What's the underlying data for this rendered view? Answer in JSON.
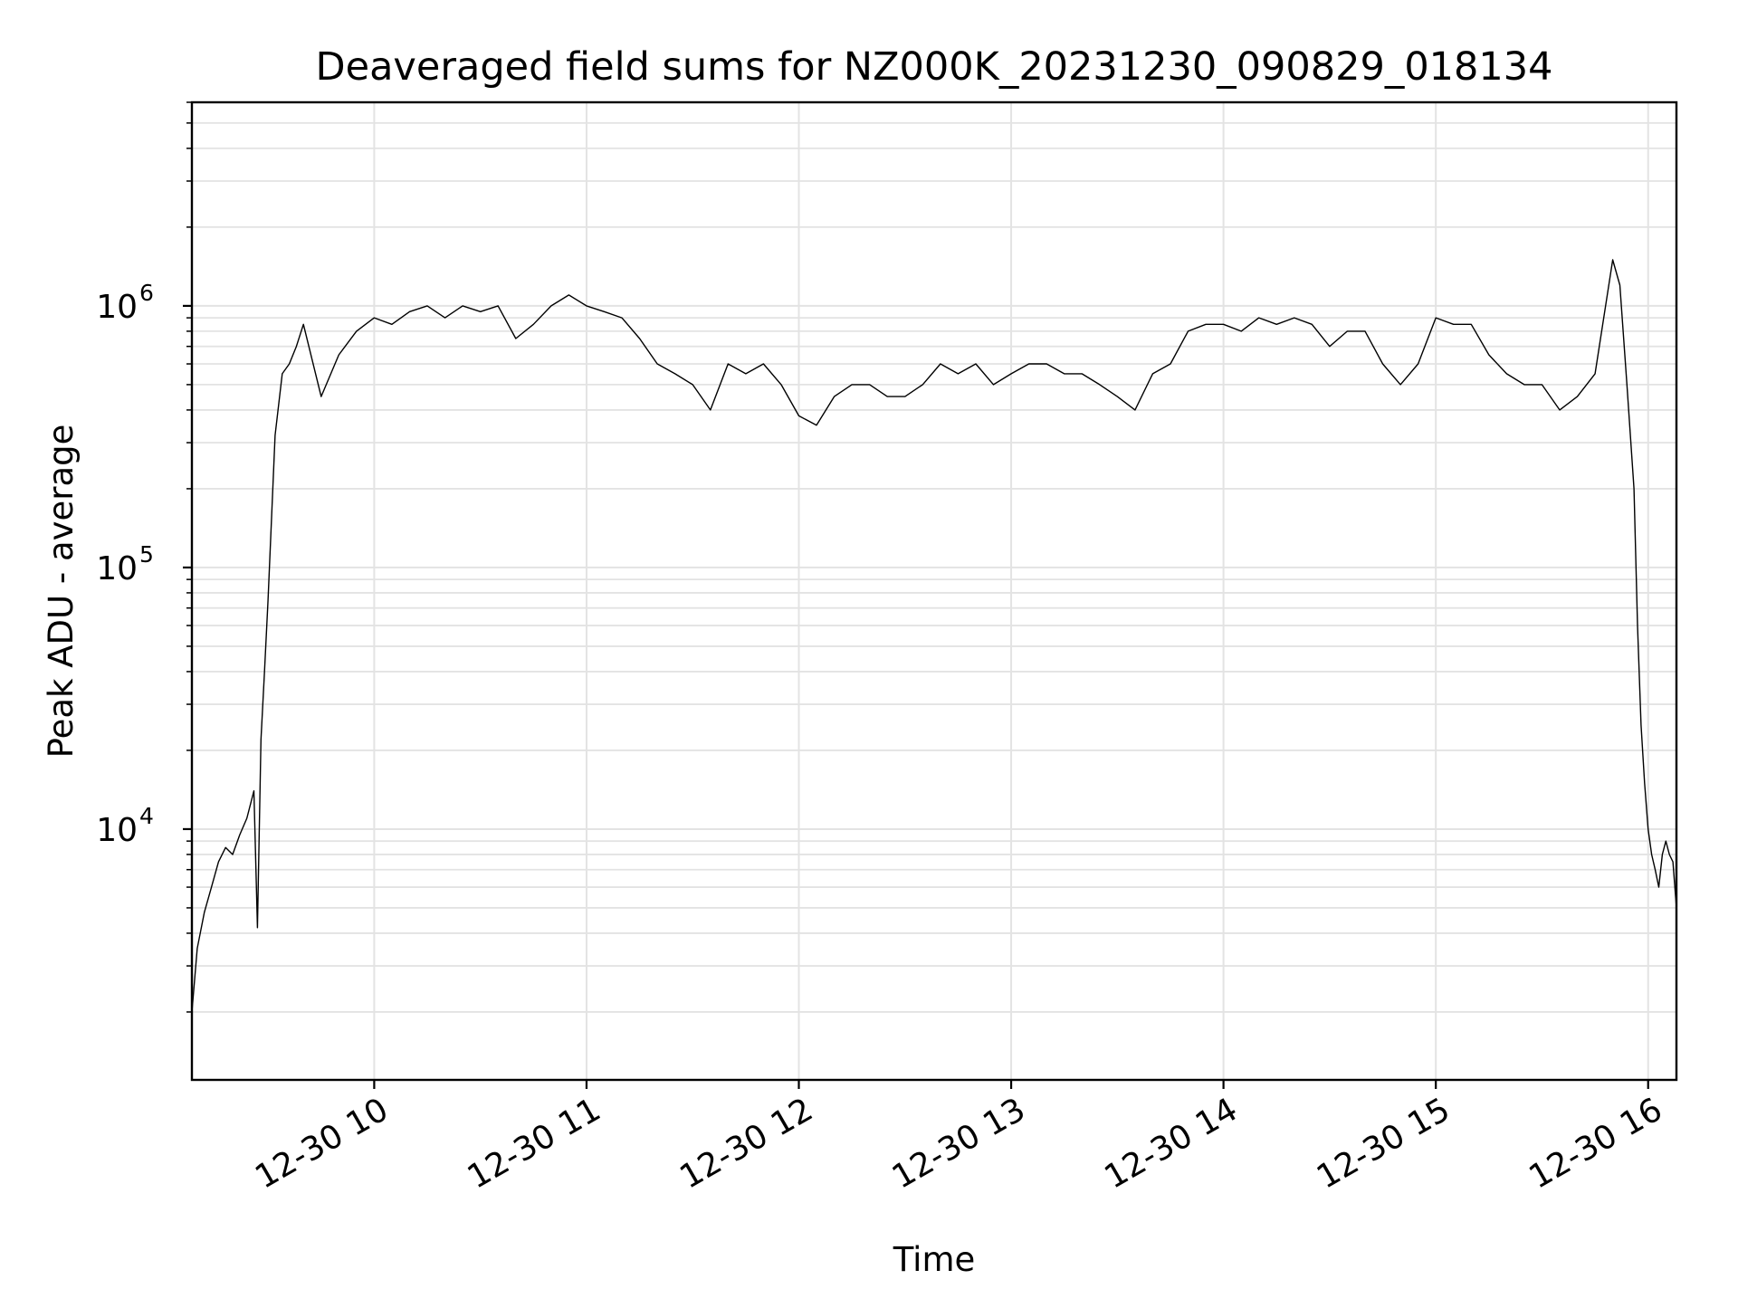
{
  "chart_data": {
    "type": "line",
    "title": "Deaveraged field sums for NZ000K_20231230_090829_018134",
    "xlabel": "Time",
    "ylabel": "Peak ADU - average",
    "yscale": "log",
    "grid": true,
    "xlim": [
      "2023-12-30 09:08:29",
      "2023-12-30 16:08:00"
    ],
    "ylim": [
      1100,
      6000000
    ],
    "x_ticks": [
      {
        "value": "2023-12-30 10:00",
        "label": "12-30 10"
      },
      {
        "value": "2023-12-30 11:00",
        "label": "12-30 11"
      },
      {
        "value": "2023-12-30 12:00",
        "label": "12-30 12"
      },
      {
        "value": "2023-12-30 13:00",
        "label": "12-30 13"
      },
      {
        "value": "2023-12-30 14:00",
        "label": "12-30 14"
      },
      {
        "value": "2023-12-30 15:00",
        "label": "12-30 15"
      },
      {
        "value": "2023-12-30 16:00",
        "label": "12-30 16"
      }
    ],
    "y_ticks": [
      {
        "value": 10000,
        "base": "10",
        "exp": "4"
      },
      {
        "value": 100000,
        "base": "10",
        "exp": "5"
      },
      {
        "value": 1000000,
        "base": "10",
        "exp": "6"
      }
    ],
    "series": [
      {
        "color": "#000000",
        "x": [
          "2023-12-30 09:08:29",
          "2023-12-30 09:10",
          "2023-12-30 09:12",
          "2023-12-30 09:14",
          "2023-12-30 09:16",
          "2023-12-30 09:18",
          "2023-12-30 09:20",
          "2023-12-30 09:22",
          "2023-12-30 09:24",
          "2023-12-30 09:26",
          "2023-12-30 09:27",
          "2023-12-30 09:28",
          "2023-12-30 09:29",
          "2023-12-30 09:30",
          "2023-12-30 09:32",
          "2023-12-30 09:34",
          "2023-12-30 09:36",
          "2023-12-30 09:38",
          "2023-12-30 09:40",
          "2023-12-30 09:45",
          "2023-12-30 09:50",
          "2023-12-30 09:55",
          "2023-12-30 10:00",
          "2023-12-30 10:05",
          "2023-12-30 10:10",
          "2023-12-30 10:15",
          "2023-12-30 10:20",
          "2023-12-30 10:25",
          "2023-12-30 10:30",
          "2023-12-30 10:35",
          "2023-12-30 10:40",
          "2023-12-30 10:45",
          "2023-12-30 10:50",
          "2023-12-30 10:55",
          "2023-12-30 11:00",
          "2023-12-30 11:05",
          "2023-12-30 11:10",
          "2023-12-30 11:15",
          "2023-12-30 11:20",
          "2023-12-30 11:25",
          "2023-12-30 11:30",
          "2023-12-30 11:35",
          "2023-12-30 11:40",
          "2023-12-30 11:45",
          "2023-12-30 11:50",
          "2023-12-30 11:55",
          "2023-12-30 12:00",
          "2023-12-30 12:05",
          "2023-12-30 12:10",
          "2023-12-30 12:15",
          "2023-12-30 12:20",
          "2023-12-30 12:25",
          "2023-12-30 12:30",
          "2023-12-30 12:35",
          "2023-12-30 12:40",
          "2023-12-30 12:45",
          "2023-12-30 12:50",
          "2023-12-30 12:55",
          "2023-12-30 13:00",
          "2023-12-30 13:05",
          "2023-12-30 13:10",
          "2023-12-30 13:15",
          "2023-12-30 13:20",
          "2023-12-30 13:25",
          "2023-12-30 13:30",
          "2023-12-30 13:35",
          "2023-12-30 13:40",
          "2023-12-30 13:45",
          "2023-12-30 13:50",
          "2023-12-30 13:55",
          "2023-12-30 14:00",
          "2023-12-30 14:05",
          "2023-12-30 14:10",
          "2023-12-30 14:15",
          "2023-12-30 14:20",
          "2023-12-30 14:25",
          "2023-12-30 14:30",
          "2023-12-30 14:35",
          "2023-12-30 14:40",
          "2023-12-30 14:45",
          "2023-12-30 14:50",
          "2023-12-30 14:55",
          "2023-12-30 15:00",
          "2023-12-30 15:05",
          "2023-12-30 15:10",
          "2023-12-30 15:15",
          "2023-12-30 15:20",
          "2023-12-30 15:25",
          "2023-12-30 15:30",
          "2023-12-30 15:35",
          "2023-12-30 15:40",
          "2023-12-30 15:45",
          "2023-12-30 15:50",
          "2023-12-30 15:52",
          "2023-12-30 15:54",
          "2023-12-30 15:56",
          "2023-12-30 15:57",
          "2023-12-30 15:58",
          "2023-12-30 15:59",
          "2023-12-30 16:00",
          "2023-12-30 16:01",
          "2023-12-30 16:02",
          "2023-12-30 16:03",
          "2023-12-30 16:04",
          "2023-12-30 16:05",
          "2023-12-30 16:06",
          "2023-12-30 16:07",
          "2023-12-30 16:08"
        ],
        "y": [
          2000,
          3500,
          4800,
          6000,
          7500,
          8500,
          8000,
          9500,
          11000,
          14000,
          4200,
          22000,
          40000,
          75000,
          320000,
          550000,
          600000,
          700000,
          850000,
          450000,
          650000,
          800000,
          900000,
          850000,
          950000,
          1000000,
          900000,
          1000000,
          950000,
          1000000,
          750000,
          850000,
          1000000,
          1100000,
          1000000,
          950000,
          900000,
          750000,
          600000,
          550000,
          500000,
          400000,
          600000,
          550000,
          600000,
          500000,
          380000,
          350000,
          450000,
          500000,
          500000,
          450000,
          450000,
          500000,
          600000,
          550000,
          600000,
          500000,
          550000,
          600000,
          600000,
          550000,
          550000,
          500000,
          450000,
          400000,
          550000,
          600000,
          800000,
          850000,
          850000,
          800000,
          900000,
          850000,
          900000,
          850000,
          700000,
          800000,
          800000,
          600000,
          500000,
          600000,
          900000,
          850000,
          850000,
          650000,
          550000,
          500000,
          500000,
          400000,
          450000,
          550000,
          1500000,
          1200000,
          500000,
          200000,
          60000,
          25000,
          15000,
          10000,
          8000,
          7000,
          6000,
          8000,
          9000,
          8000,
          7500,
          5000
        ]
      }
    ]
  }
}
